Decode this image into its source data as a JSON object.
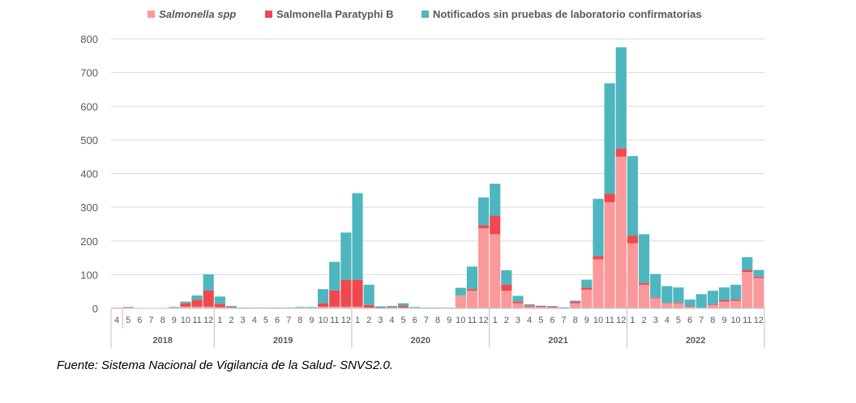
{
  "chart_data": {
    "type": "bar",
    "stacked": true,
    "title": "",
    "xlabel": "",
    "ylabel": "",
    "ylim": [
      0,
      800
    ],
    "yticks": [
      0,
      100,
      200,
      300,
      400,
      500,
      600,
      700,
      800
    ],
    "grid": true,
    "legend_position": "top",
    "colors": {
      "salmonella_spp": "#f9999b",
      "paratyphi_b": "#f0484c",
      "sin_pruebas": "#4db6be"
    },
    "groups": [
      {
        "year": "2018",
        "months": [
          "4",
          "5",
          "6",
          "7",
          "8",
          "9",
          "10",
          "11",
          "12"
        ]
      },
      {
        "year": "2019",
        "months": [
          "1",
          "2",
          "3",
          "4",
          "5",
          "6",
          "7",
          "8",
          "9",
          "10",
          "11",
          "12"
        ]
      },
      {
        "year": "2020",
        "months": [
          "1",
          "2",
          "3",
          "4",
          "5",
          "6",
          "7",
          "8",
          "9",
          "10",
          "11",
          "12"
        ]
      },
      {
        "year": "2021",
        "months": [
          "1",
          "2",
          "3",
          "4",
          "5",
          "6",
          "7",
          "8",
          "9",
          "10",
          "11",
          "12"
        ]
      },
      {
        "year": "2022",
        "months": [
          "1",
          "2",
          "3",
          "4",
          "5",
          "6",
          "7",
          "8",
          "9",
          "10",
          "11",
          "12"
        ]
      }
    ],
    "series": [
      {
        "name": "Salmonella spp",
        "italic": true,
        "values": [
          2,
          3,
          0,
          0,
          0,
          2,
          5,
          5,
          5,
          3,
          2,
          1,
          1,
          1,
          1,
          1,
          2,
          2,
          5,
          5,
          5,
          5,
          2,
          1,
          2,
          2,
          2,
          1,
          1,
          1,
          38,
          52,
          238,
          220,
          52,
          15,
          5,
          4,
          3,
          1,
          15,
          55,
          145,
          315,
          450,
          193,
          70,
          30,
          15,
          15,
          5,
          2,
          10,
          20,
          22,
          108,
          90
        ]
      },
      {
        "name": "Salmonella Paratyphi B",
        "italic": false,
        "values": [
          0,
          1,
          0,
          0,
          0,
          0,
          10,
          20,
          48,
          10,
          2,
          0,
          0,
          0,
          0,
          0,
          0,
          0,
          10,
          48,
          80,
          80,
          8,
          2,
          2,
          5,
          0,
          0,
          0,
          0,
          0,
          5,
          8,
          55,
          18,
          5,
          3,
          2,
          2,
          0,
          5,
          7,
          10,
          25,
          25,
          22,
          5,
          2,
          1,
          2,
          1,
          0,
          2,
          4,
          4,
          6,
          4
        ]
      },
      {
        "name": "Notificados sin pruebas de laboratorio confirmatorias",
        "italic": false,
        "values": [
          0,
          0,
          0,
          0,
          0,
          2,
          5,
          13,
          48,
          22,
          3,
          1,
          1,
          1,
          1,
          1,
          2,
          2,
          42,
          85,
          140,
          257,
          60,
          3,
          3,
          8,
          2,
          1,
          1,
          1,
          23,
          67,
          83,
          95,
          43,
          17,
          4,
          2,
          2,
          2,
          3,
          23,
          170,
          328,
          300,
          237,
          145,
          70,
          50,
          45,
          20,
          40,
          40,
          38,
          44,
          38,
          20
        ]
      }
    ],
    "legend": [
      "Salmonella spp",
      "Salmonella Paratyphi B",
      "Notificados sin pruebas de laboratorio confirmatorias"
    ]
  },
  "source_note": "Fuente: Sistema Nacional de Vigilancia de la Salud- SNVS2.0."
}
